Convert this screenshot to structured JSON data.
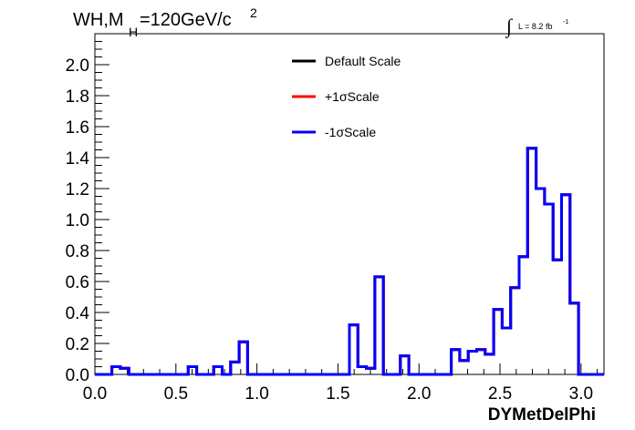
{
  "header": {
    "title_main": "WH,M",
    "title_sub": "H",
    "title_rest": "=120GeV/c",
    "title_sup": "2",
    "lumi_integral": "∫",
    "lumi_text": "L = 8.2 fb",
    "lumi_sup": "-1"
  },
  "legend": [
    {
      "label": "Default Scale",
      "color": "#000000"
    },
    {
      "label": "+1σScale",
      "color": "#ff0000"
    },
    {
      "label": "-1σScale",
      "color": "#0000ff"
    }
  ],
  "chart_data": {
    "type": "line",
    "title": "WH,M_H=120GeV/c^2",
    "xlabel": "DYMetDelPhi",
    "ylabel": "",
    "xlim": [
      0,
      3.1416
    ],
    "ylim": [
      0,
      2.2
    ],
    "xticks": [
      "0.0",
      "0.5",
      "1.0",
      "1.5",
      "2.0",
      "2.5",
      "3.0"
    ],
    "xtick_values": [
      0,
      0.5,
      1.0,
      1.5,
      2.0,
      2.5,
      3.0
    ],
    "yticks": [
      "0.0",
      "0.2",
      "0.4",
      "0.6",
      "0.8",
      "1.0",
      "1.2",
      "1.4",
      "1.6",
      "1.8",
      "2.0"
    ],
    "ytick_values": [
      0,
      0.2,
      0.4,
      0.6,
      0.8,
      1.0,
      1.2,
      1.4,
      1.6,
      1.8,
      2.0
    ],
    "bin_count": 60,
    "series": [
      {
        "name": "Default Scale",
        "color": "#000000",
        "values": [
          0,
          0,
          0.05,
          0.04,
          0,
          0,
          0,
          0,
          0,
          0,
          0,
          0.05,
          0,
          0,
          0.05,
          0,
          0.08,
          0.21,
          0,
          0,
          0,
          0,
          0,
          0,
          0,
          0,
          0,
          0,
          0,
          0,
          0.32,
          0.05,
          0.04,
          0.63,
          0,
          0,
          0.12,
          0,
          0,
          0,
          0,
          0,
          0.16,
          0.09,
          0.15,
          0.16,
          0.13,
          0.42,
          0.3,
          0.56,
          0.76,
          1.46,
          1.2,
          1.1,
          0.74,
          1.16,
          0.46,
          0,
          0,
          0
        ]
      },
      {
        "name": "+1σScale",
        "color": "#ff0000",
        "values": [
          0,
          0,
          0.05,
          0.04,
          0,
          0,
          0,
          0,
          0,
          0,
          0,
          0.05,
          0,
          0,
          0.05,
          0,
          0.08,
          0.21,
          0,
          0,
          0,
          0,
          0,
          0,
          0,
          0,
          0,
          0,
          0,
          0,
          0.32,
          0.05,
          0.04,
          0.63,
          0,
          0,
          0.12,
          0,
          0,
          0,
          0,
          0,
          0.16,
          0.09,
          0.15,
          0.16,
          0.13,
          0.42,
          0.3,
          0.56,
          0.76,
          1.46,
          1.2,
          1.1,
          0.74,
          1.16,
          0.46,
          0,
          0,
          0
        ]
      },
      {
        "name": "-1σScale",
        "color": "#0000ff",
        "values": [
          0,
          0,
          0.05,
          0.04,
          0,
          0,
          0,
          0,
          0,
          0,
          0,
          0.05,
          0,
          0,
          0.05,
          0,
          0.08,
          0.21,
          0,
          0,
          0,
          0,
          0,
          0,
          0,
          0,
          0,
          0,
          0,
          0,
          0.32,
          0.05,
          0.04,
          0.63,
          0,
          0,
          0.12,
          0,
          0,
          0,
          0,
          0,
          0.16,
          0.09,
          0.15,
          0.16,
          0.13,
          0.42,
          0.3,
          0.56,
          0.76,
          1.46,
          1.2,
          1.1,
          0.74,
          1.16,
          0.46,
          0,
          0,
          0
        ]
      }
    ],
    "grid": false,
    "legend_position": "top-center"
  }
}
